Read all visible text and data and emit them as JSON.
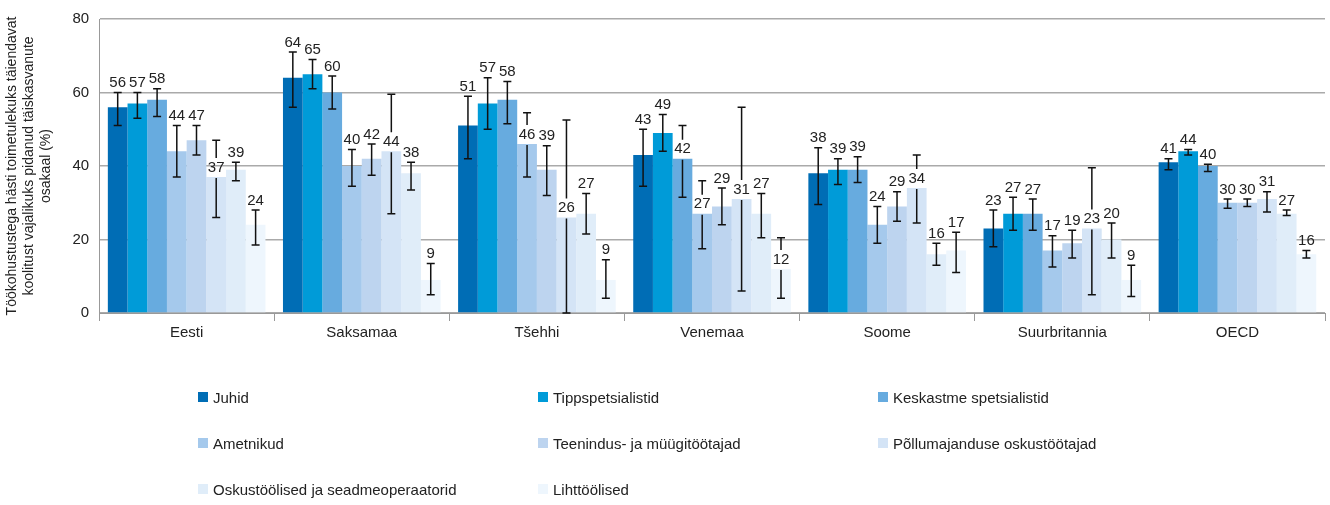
{
  "chart_data": {
    "type": "bar",
    "ylabel": "Töökohustustega hästi toimetulekuks täiendavat koolitust vajalikuks pidanud täiskasvanute osakaal (%)",
    "categories": [
      "Eesti",
      "Saksamaa",
      "Tšehhi",
      "Venemaa",
      "Soome",
      "Suurbritannia",
      "OECD"
    ],
    "series": [
      {
        "name": "Juhid",
        "color": "#006db5",
        "values": [
          56,
          64,
          51,
          43,
          38,
          23,
          41
        ],
        "errors": [
          [
            51,
            60
          ],
          [
            56,
            71
          ],
          [
            42,
            59
          ],
          [
            34.5,
            50
          ],
          [
            29.5,
            45
          ],
          [
            18,
            28
          ],
          [
            39,
            42
          ]
        ]
      },
      {
        "name": "Tippspetsialistid",
        "color": "#009bd8",
        "values": [
          57,
          65,
          57,
          49,
          39,
          27,
          44
        ],
        "errors": [
          [
            53,
            60
          ],
          [
            61,
            69
          ],
          [
            50,
            64
          ],
          [
            44,
            54
          ],
          [
            35,
            42
          ],
          [
            22.5,
            31.5
          ],
          [
            43,
            44.5
          ]
        ]
      },
      {
        "name": "Keskastme spetsialistid",
        "color": "#67abdf",
        "values": [
          58,
          60,
          58,
          42,
          39,
          27,
          40
        ],
        "errors": [
          [
            53.5,
            61
          ],
          [
            55.5,
            64.5
          ],
          [
            51.5,
            63
          ],
          [
            31.5,
            51
          ],
          [
            35.5,
            42.5
          ],
          [
            22.5,
            31
          ],
          [
            38.5,
            40.5
          ]
        ]
      },
      {
        "name": "Ametnikud",
        "color": "#a5c9ec",
        "values": [
          44,
          40,
          46,
          27,
          24,
          17,
          30
        ],
        "errors": [
          [
            37,
            51
          ],
          [
            34.5,
            44.5
          ],
          [
            37,
            54.5
          ],
          [
            17.5,
            36
          ],
          [
            19,
            29
          ],
          [
            12.5,
            21
          ],
          [
            28.5,
            31
          ]
        ]
      },
      {
        "name": "Teenindus- ja müügitöötajad",
        "color": "#bdd4ef",
        "values": [
          47,
          42,
          39,
          29,
          29,
          19,
          30
        ],
        "errors": [
          [
            43,
            51
          ],
          [
            37.5,
            46
          ],
          [
            32,
            45.5
          ],
          [
            24,
            34
          ],
          [
            25,
            33
          ],
          [
            15,
            22.5
          ],
          [
            29,
            31
          ]
        ]
      },
      {
        "name": "Põllumajanduse oskustöötajad",
        "color": "#d4e4f6",
        "values": [
          37,
          44,
          26,
          31,
          34,
          23,
          31
        ],
        "errors": [
          [
            26,
            47
          ],
          [
            27,
            59.5
          ],
          [
            0,
            52.5
          ],
          [
            6,
            56
          ],
          [
            24.5,
            43
          ],
          [
            5,
            39.5
          ],
          [
            27.5,
            33
          ]
        ]
      },
      {
        "name": "Oskustöölised ja seadmeoperaatorid",
        "color": "#e0edf9",
        "values": [
          39,
          38,
          27,
          27,
          16,
          20,
          27
        ],
        "errors": [
          [
            36,
            41
          ],
          [
            33.5,
            41
          ],
          [
            21.5,
            32.5
          ],
          [
            20.5,
            32.5
          ],
          [
            13,
            19
          ],
          [
            15,
            24.5
          ],
          [
            26.5,
            28
          ]
        ]
      },
      {
        "name": "Lihttöölised",
        "color": "#eef6fd",
        "values": [
          24,
          9,
          9,
          12,
          17,
          9,
          16
        ],
        "errors": [
          [
            18.5,
            28
          ],
          [
            5,
            13.5
          ],
          [
            4,
            14.5
          ],
          [
            4,
            20.5
          ],
          [
            11,
            22
          ],
          [
            4.5,
            13
          ],
          [
            15,
            17
          ]
        ]
      }
    ],
    "ylim": [
      0,
      80
    ],
    "yticks": [
      0,
      20,
      40,
      60,
      80
    ],
    "grid": "y",
    "legend": "bottom",
    "data_labels": true
  }
}
